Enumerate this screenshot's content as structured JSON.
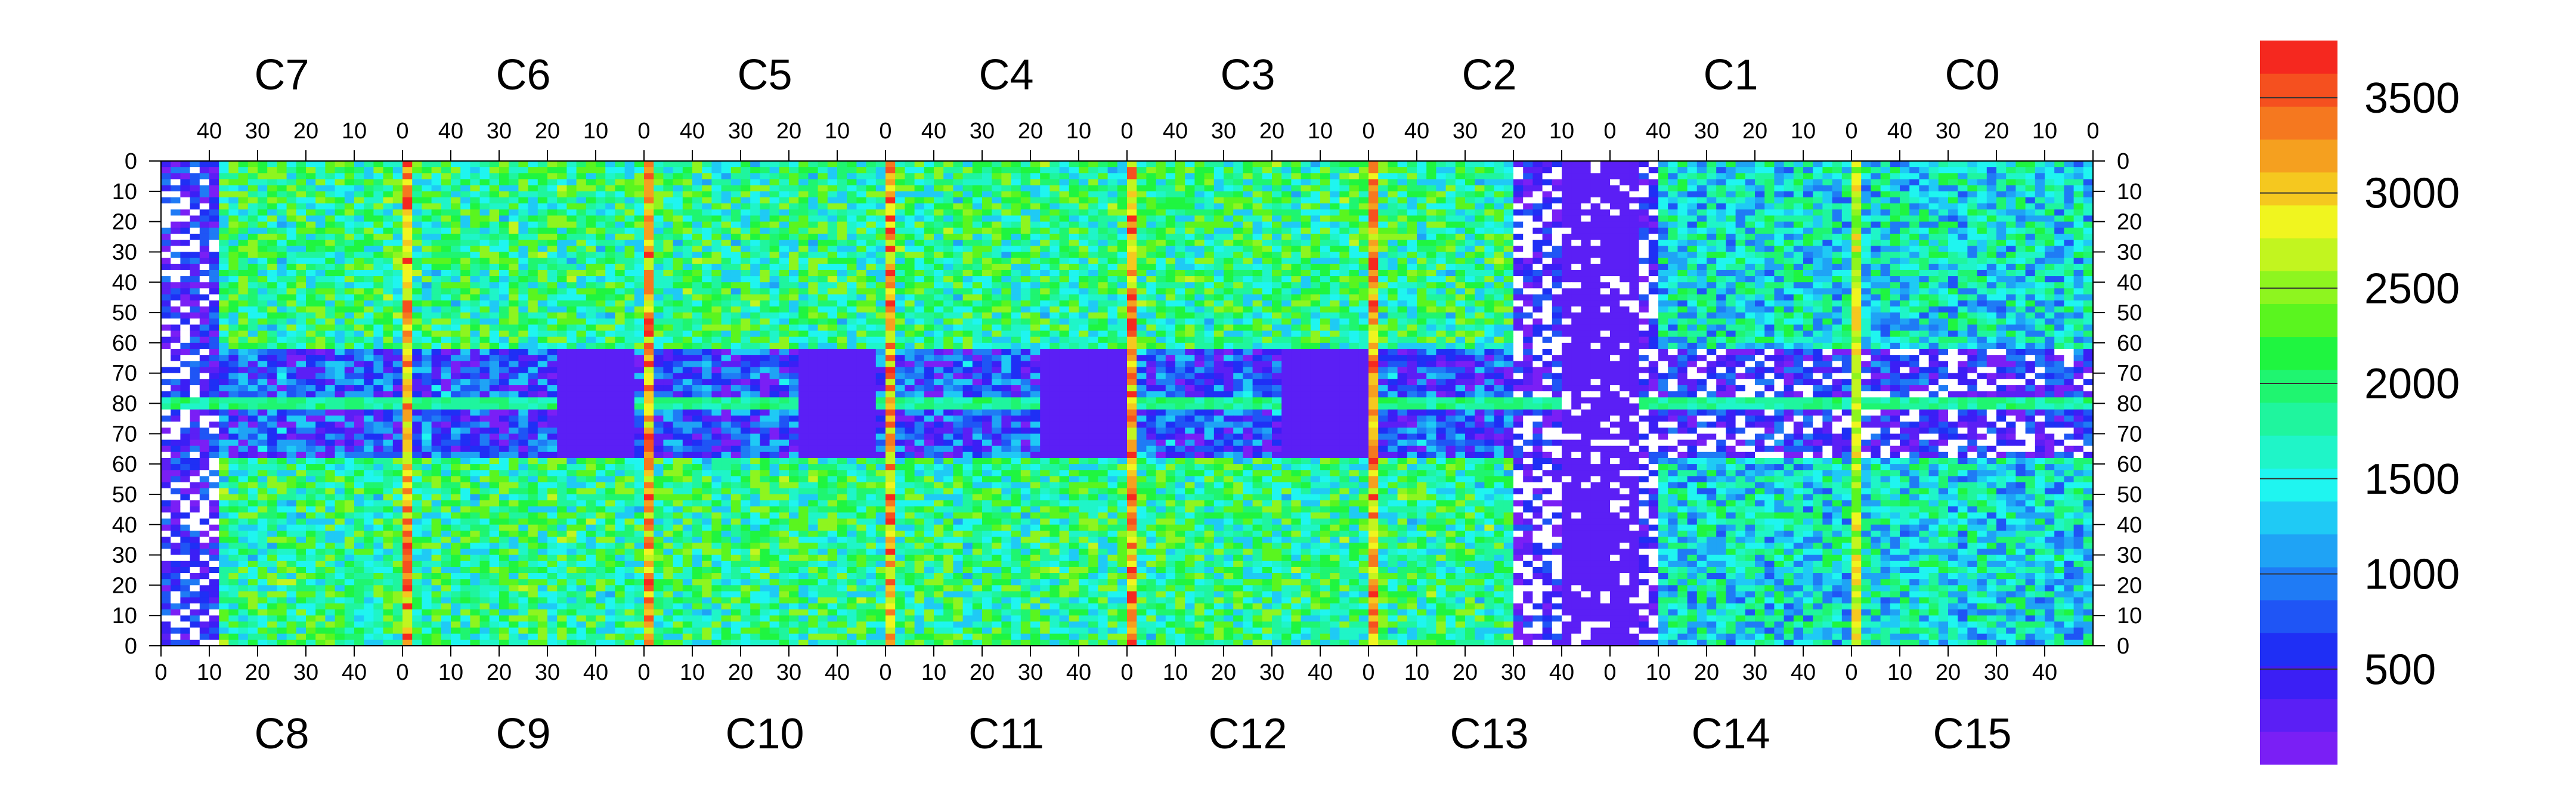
{
  "chart_data": {
    "type": "heatmap",
    "title": "",
    "xlabel": "",
    "ylabel": "",
    "top_chip_labels": [
      "C7",
      "C6",
      "C5",
      "C4",
      "C3",
      "C2",
      "C1",
      "C0"
    ],
    "bottom_chip_labels": [
      "C8",
      "C9",
      "C10",
      "C11",
      "C12",
      "C13",
      "C14",
      "C15"
    ],
    "top_ticks": [
      "40",
      "30",
      "20",
      "10",
      "0"
    ],
    "bottom_ticks": [
      "0",
      "10",
      "20",
      "30",
      "40"
    ],
    "top_ticks_leading_zero": "0",
    "left_y_ticks": [
      "0",
      "10",
      "20",
      "30",
      "40",
      "50",
      "60",
      "70",
      "80",
      "70",
      "60",
      "50",
      "40",
      "30",
      "20",
      "10",
      "0"
    ],
    "right_y_ticks": [
      "0",
      "10",
      "20",
      "30",
      "40",
      "50",
      "60",
      "70",
      "80",
      "70",
      "60",
      "50",
      "40",
      "30",
      "20",
      "10",
      "0"
    ],
    "colorbar": {
      "min": 0,
      "max": 3800,
      "ticks": [
        "500",
        "1000",
        "1500",
        "2000",
        "2500",
        "3000",
        "3500"
      ],
      "tick_values": [
        500,
        1000,
        1500,
        2000,
        2500,
        3000,
        3500
      ],
      "colors": [
        "#7a1ff5",
        "#5b1ff5",
        "#3b1ff5",
        "#1f2ff5",
        "#1f55f5",
        "#1f7bf5",
        "#1fa3f5",
        "#1fcaf5",
        "#1ff5f0",
        "#1ff5c8",
        "#1ff59e",
        "#1ff570",
        "#1ff540",
        "#5af51f",
        "#8ef51f",
        "#c2f51f",
        "#f0f51f",
        "#f5c81f",
        "#f5a01f",
        "#f5781f",
        "#f5501f",
        "#f5281f"
      ]
    },
    "grid": false,
    "legend": "colorbar-right",
    "description_values": {
      "grid_size": [
        400,
        160
      ],
      "hot_columns": [
        "C7/C8 column 0",
        "C6/C9 column 0",
        "C5/C10 column 0",
        "C4/C11 column 0",
        "C3/C12 column 0"
      ],
      "hot_row": "row 80",
      "dead_region": "C13/C2 area near column 0 shows white (empty) pixels"
    }
  }
}
